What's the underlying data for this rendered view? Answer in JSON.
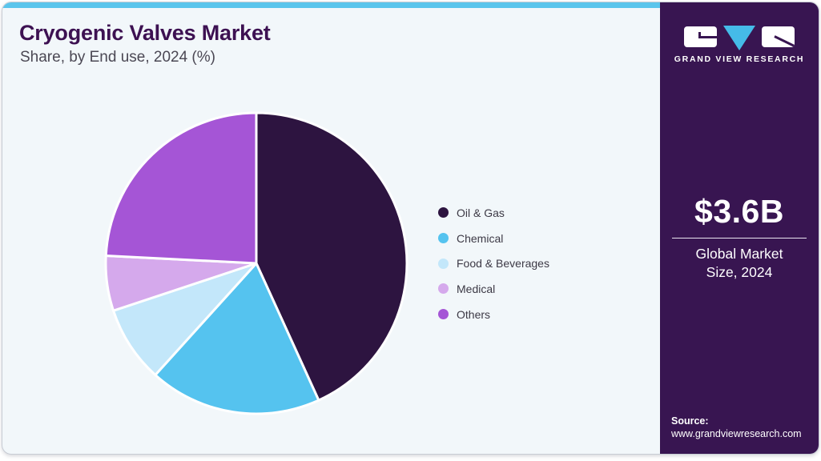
{
  "header": {
    "title": "Cryogenic Valves Market",
    "subtitle": "Share, by End use, 2024 (%)"
  },
  "chart_data": {
    "type": "pie",
    "title": "Cryogenic Valves Market Share, by End use, 2024 (%)",
    "categories": [
      "Oil & Gas",
      "Chemical",
      "Food & Beverages",
      "Medical",
      "Others"
    ],
    "values": [
      43.2,
      18.5,
      8.2,
      5.9,
      24.2
    ],
    "units": "%",
    "colors": [
      "#2d1440",
      "#55c3ef",
      "#c3e7fa",
      "#d5a9ec",
      "#a555d6"
    ],
    "start_angle_deg": 0,
    "direction": "clockwise",
    "legend_position": "right",
    "slice_border_color": "#ffffff",
    "data_labels": false
  },
  "panel": {
    "logo_name": "Grand View Research logo",
    "logo_text": "GRAND VIEW RESEARCH",
    "market_size_value": "$3.6B",
    "market_size_label": "Global Market Size, 2024",
    "source_label": "Source:",
    "source_url": "www.grandviewresearch.com"
  },
  "colors": {
    "top_bar": "#5bc5ec",
    "panel_bg": "#381551",
    "card_bg": "#f2f7fa",
    "title_color": "#3d1152",
    "logo_triangle": "#45bbe8",
    "legend_text": "#3c3945"
  }
}
